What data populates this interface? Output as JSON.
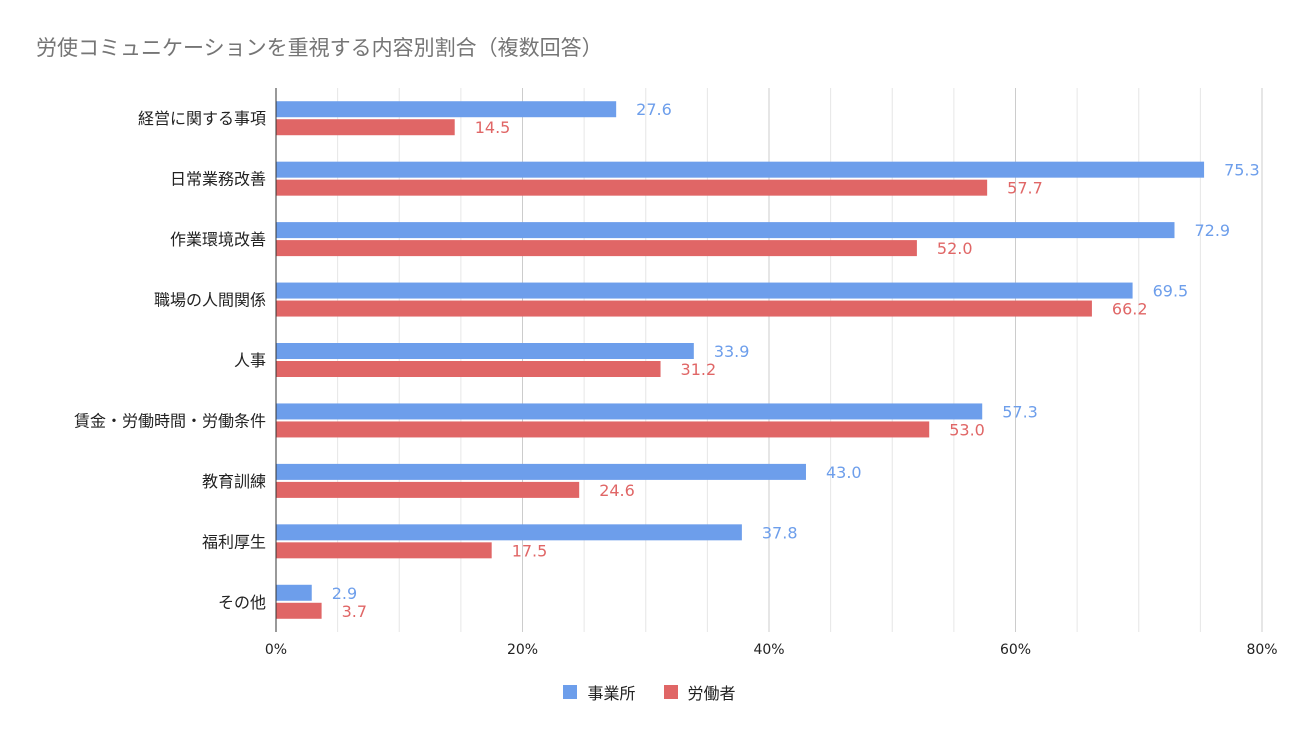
{
  "chart_data": {
    "type": "bar",
    "orientation": "horizontal",
    "title": "労使コミュニケーションを重視する内容別割合（複数回答）",
    "categories": [
      "経営に関する事項",
      "日常業務改善",
      "作業環境改善",
      "職場の人間関係",
      "人事",
      "賃金・労働時間・労働条件",
      "教育訓練",
      "福利厚生",
      "その他"
    ],
    "series": [
      {
        "name": "事業所",
        "color": "#6d9eeb",
        "values": [
          27.6,
          75.3,
          72.9,
          69.5,
          33.9,
          57.3,
          43.0,
          37.8,
          2.9
        ],
        "labels": [
          "27.6",
          "75.3",
          "72.9",
          "69.5",
          "33.9",
          "57.3",
          "43.0",
          "37.8",
          "2.9"
        ]
      },
      {
        "name": "労働者",
        "color": "#e06666",
        "values": [
          14.5,
          57.7,
          52.0,
          66.2,
          31.2,
          53.0,
          24.6,
          17.5,
          3.7
        ],
        "labels": [
          "14.5",
          "57.7",
          "52.0",
          "66.2",
          "31.2",
          "53.0",
          "24.6",
          "17.5",
          "3.7"
        ]
      }
    ],
    "xlim": [
      0,
      80
    ],
    "xticks": [
      "0%",
      "20%",
      "40%",
      "60%",
      "80%"
    ],
    "xlabel": "",
    "ylabel": "",
    "grid": true,
    "legend_position": "bottom"
  }
}
